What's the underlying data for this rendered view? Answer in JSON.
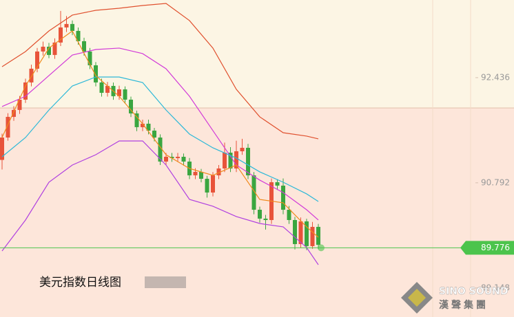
{
  "chart_data": {
    "type": "candlestick",
    "title": "美元指数日线图",
    "up_color": "#e8533a",
    "down_color": "#3aa640",
    "open": [
      91.15,
      91.5,
      91.823,
      91.931,
      92.092,
      92.361,
      92.576,
      92.845,
      92.92,
      92.791,
      92.985,
      93.221,
      93.275,
      93.167,
      93.006,
      92.845,
      92.629,
      92.361,
      92.199,
      92.307,
      92.146,
      92.253,
      92.092,
      91.877,
      91.662,
      91.716,
      91.608,
      91.5,
      91.124,
      91.199,
      91.178,
      91.199,
      91.124,
      90.909,
      90.963,
      90.855,
      90.64,
      90.909,
      91.016,
      91.263,
      91.016,
      91.285,
      91.339,
      90.909,
      90.371,
      90.232,
      90.21,
      90.801,
      90.748,
      90.371,
      90.21,
      89.834,
      90.189,
      89.802,
      90.103
    ],
    "high": [
      91.56,
      91.88,
      91.99,
      92.15,
      92.42,
      92.64,
      92.9,
      93.0,
      92.98,
      93.05,
      93.48,
      93.4,
      93.33,
      93.22,
      93.06,
      92.9,
      92.68,
      92.42,
      92.37,
      92.36,
      92.31,
      92.3,
      92.14,
      91.92,
      91.78,
      91.78,
      91.65,
      91.55,
      91.26,
      91.26,
      91.26,
      91.25,
      91.18,
      91.02,
      91.01,
      90.9,
      90.96,
      91.07,
      91.42,
      91.35,
      91.45,
      91.48,
      91.4,
      90.96,
      90.42,
      90.29,
      90.86,
      90.85,
      90.86,
      90.43,
      90.26,
      90.25,
      90.23,
      90.18,
      90.15
    ],
    "low": [
      91.0,
      91.45,
      91.76,
      91.87,
      92.04,
      92.3,
      92.52,
      92.78,
      92.74,
      92.73,
      92.93,
      93.15,
      93.1,
      92.95,
      92.78,
      92.57,
      92.3,
      92.14,
      92.14,
      92.09,
      92.09,
      92.03,
      91.82,
      91.6,
      91.6,
      91.55,
      91.44,
      91.07,
      91.07,
      91.12,
      91.12,
      91.06,
      90.85,
      90.85,
      90.8,
      90.56,
      90.58,
      90.85,
      90.96,
      90.96,
      90.96,
      91.23,
      90.85,
      90.3,
      90.17,
      90.06,
      90.15,
      90.68,
      90.3,
      90.15,
      89.75,
      89.78,
      89.74,
      89.76,
      89.76
    ],
    "close": [
      91.5,
      91.823,
      91.931,
      92.092,
      92.361,
      92.576,
      92.845,
      92.92,
      92.791,
      92.985,
      93.221,
      93.275,
      93.167,
      93.006,
      92.845,
      92.629,
      92.361,
      92.199,
      92.307,
      92.146,
      92.253,
      92.092,
      91.877,
      91.662,
      91.716,
      91.608,
      91.5,
      91.124,
      91.199,
      91.178,
      91.199,
      91.124,
      90.909,
      90.963,
      90.855,
      90.64,
      90.909,
      91.016,
      91.263,
      91.016,
      91.285,
      91.339,
      90.909,
      90.371,
      90.232,
      90.21,
      90.801,
      90.748,
      90.371,
      90.21,
      89.834,
      90.189,
      89.802,
      90.103,
      89.823
    ],
    "overlay_x": [
      0,
      4,
      8,
      12,
      16,
      20,
      24,
      28,
      32,
      36,
      40,
      44,
      48,
      52,
      54
    ],
    "overlays": [
      {
        "color": "#e0502e",
        "values": [
          92.607,
          92.844,
          93.166,
          93.414,
          93.489,
          93.521,
          93.564,
          93.596,
          93.328,
          92.898,
          92.253,
          91.823,
          91.575,
          91.522,
          91.479
        ]
      },
      {
        "color": "#d23ad8",
        "values": [
          91.984,
          92.145,
          92.468,
          92.79,
          92.876,
          92.898,
          92.812,
          92.575,
          92.145,
          91.608,
          91.07,
          90.834,
          90.64,
          90.371,
          90.21
        ]
      },
      {
        "color": "#2cb8d8",
        "values": [
          91.199,
          91.5,
          91.93,
          92.306,
          92.446,
          92.446,
          92.36,
          91.93,
          91.554,
          91.339,
          91.178,
          90.963,
          90.801,
          90.619,
          90.5
        ]
      },
      {
        "color": "#b040e0",
        "values": [
          89.726,
          90.21,
          90.801,
          91.07,
          91.231,
          91.446,
          91.446,
          91.07,
          90.533,
          90.425,
          90.264,
          90.156,
          90.103,
          89.78,
          89.511
        ]
      },
      {
        "color": "#f08a1c",
        "values": [
          91.5,
          92.306,
          92.898,
          93.166,
          92.468,
          92.145,
          91.715,
          91.231,
          91.016,
          90.909,
          91.07,
          90.532,
          90.479,
          90.103,
          89.941
        ]
      }
    ],
    "current": {
      "value": 89.776,
      "color": "#4cc44c"
    },
    "ylim": [
      88.694,
      93.65
    ],
    "yticks": [
      92.436,
      90.792,
      89.148
    ]
  },
  "logo": {
    "name": "SINO SOUND",
    "chinese": "漢聲集團"
  }
}
